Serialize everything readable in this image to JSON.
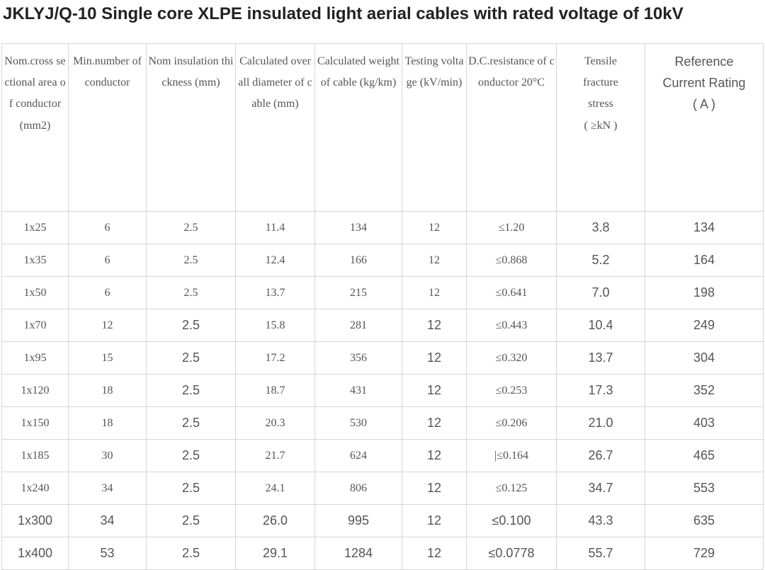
{
  "title": "JKLYJ/Q-10 Single core XLPE insulated light aerial cables with rated voltage of 10kV",
  "table": {
    "headers": [
      "Nom.cross sectional area of conductor (mm2)",
      "Min.number of conductor",
      "Nom insulation thickness (mm)",
      "Calculated overall diameter of cable (mm)",
      "Calculated weight of cable (kg/km)",
      "Testing voltage (kV/min)",
      "D.C.resistance of conductor 20°C",
      "Tensile fracture stress ( ≥kN )",
      "Reference Current Rating ( A )"
    ],
    "header_lines": {
      "ref_rating": [
        "Reference",
        "Current Rating",
        "( A )"
      ],
      "tensile": [
        "Tensile",
        "fracture",
        "stress",
        "( ≥kN )"
      ]
    },
    "rows": [
      [
        "1x25",
        "6",
        "2.5",
        "11.4",
        "134",
        "12",
        "≤1.20",
        "3.8",
        "134"
      ],
      [
        "1x35",
        "6",
        "2.5",
        "12.4",
        "166",
        "12",
        "≤0.868",
        "5.2",
        "164"
      ],
      [
        "1x50",
        "6",
        "2.5",
        "13.7",
        "215",
        "12",
        "≤0.641",
        "7.0",
        "198"
      ],
      [
        "1x70",
        "12",
        "2.5",
        "15.8",
        "281",
        "12",
        "≤0.443",
        "10.4",
        "249"
      ],
      [
        "1x95",
        "15",
        "2.5",
        "17.2",
        "356",
        "12",
        "≤0.320",
        "13.7",
        "304"
      ],
      [
        "1x120",
        "18",
        "2.5",
        "18.7",
        "431",
        "12",
        "≤0.253",
        "17.3",
        "352"
      ],
      [
        "1x150",
        "18",
        "2.5",
        "20.3",
        "530",
        "12",
        "≤0.206",
        "21.0",
        "403"
      ],
      [
        "1x185",
        "30",
        "2.5",
        "21.7",
        "624",
        "12",
        "|≤0.164",
        "26.7",
        "465"
      ],
      [
        "1x240",
        "34",
        "2.5",
        "24.1",
        "806",
        "12",
        "≤0.125",
        "34.7",
        "553"
      ],
      [
        "1x300",
        "34",
        "2.5",
        "26.0",
        "995",
        "12",
        "≤0.100",
        "43.3",
        "635"
      ],
      [
        "1x400",
        "53",
        "2.5",
        "29.1",
        "1284",
        "12",
        "≤0.0778",
        "55.7",
        "729"
      ]
    ]
  }
}
